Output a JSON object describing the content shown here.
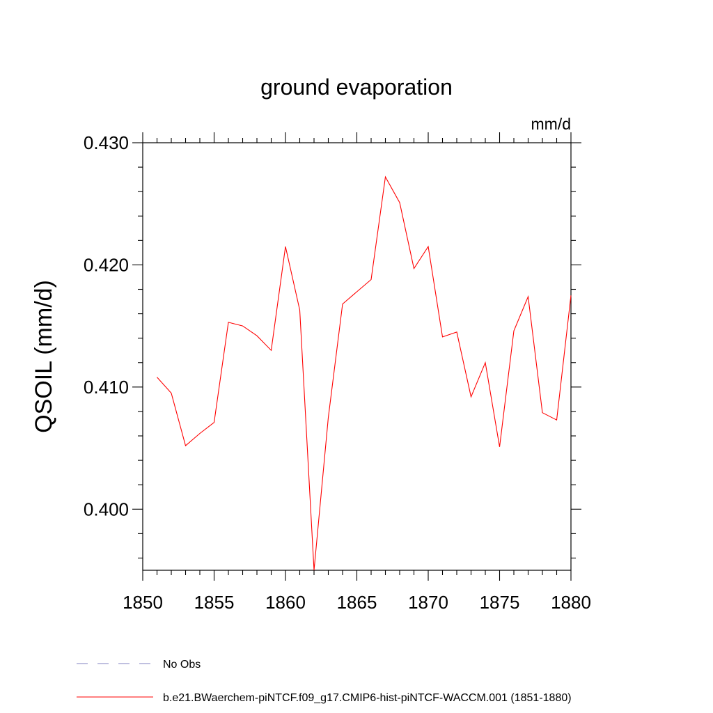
{
  "chart_data": {
    "type": "line",
    "title": "ground evaporation",
    "units_label": "mm/d",
    "xlabel": "",
    "ylabel": "QSOIL  (mm/d)",
    "xlim": [
      1850,
      1880
    ],
    "ylim": [
      0.395,
      0.43
    ],
    "x_ticks": [
      1850,
      1855,
      1860,
      1865,
      1870,
      1875,
      1880
    ],
    "x_tick_labels": [
      "1850",
      "1855",
      "1860",
      "1865",
      "1870",
      "1875",
      "1880"
    ],
    "y_ticks": [
      0.4,
      0.41,
      0.42,
      0.43
    ],
    "y_tick_labels": [
      "0.400",
      "0.410",
      "0.420",
      "0.430"
    ],
    "grid": false,
    "legend_position": "bottom",
    "series": [
      {
        "name": "b.e21.BWaerchem-piNTCF.f09_g17.CMIP6-hist-piNTCF-WACCM.001 (1851-1880)",
        "color": "#ff0000",
        "style": "solid",
        "x": [
          1851,
          1852,
          1853,
          1854,
          1855,
          1856,
          1857,
          1858,
          1859,
          1860,
          1861,
          1862,
          1863,
          1864,
          1865,
          1866,
          1867,
          1868,
          1869,
          1870,
          1871,
          1872,
          1873,
          1874,
          1875,
          1876,
          1877,
          1878,
          1879,
          1880
        ],
        "values": [
          0.4108,
          0.4095,
          0.4052,
          0.4062,
          0.4071,
          0.4153,
          0.415,
          0.4142,
          0.413,
          0.4215,
          0.4163,
          0.395,
          0.4075,
          0.4168,
          0.4178,
          0.4188,
          0.4272,
          0.4251,
          0.4197,
          0.4215,
          0.4141,
          0.4145,
          0.4092,
          0.412,
          0.4051,
          0.4146,
          0.4174,
          0.4079,
          0.4073,
          0.4175
        ]
      },
      {
        "name": "No Obs",
        "color": "#8080c0",
        "style": "dashed",
        "x": [],
        "values": []
      }
    ]
  }
}
